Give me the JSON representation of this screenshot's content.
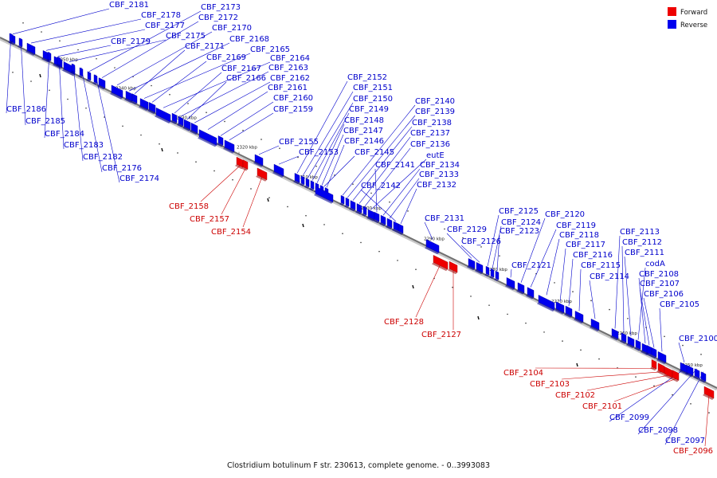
{
  "caption": "Clostridium botulinum F str. 230613, complete genome. - 0..3993083",
  "legend": {
    "forward_label": "Forward",
    "reverse_label": "Reverse",
    "forward_color": "#ee0000",
    "reverse_color": "#0000ee"
  },
  "label_colors": {
    "forward": "#cc0000",
    "reverse": "#0000cc"
  },
  "ticks": [
    "2350 kbp",
    "2340 kbp",
    "2330 kbp",
    "2320 kbp",
    "2310 kbp",
    "2300 kbp",
    "2290 kbp",
    "2280 kbp",
    "2270 kbp",
    "2260 kbp",
    "2250 kbp"
  ],
  "genes": [
    {
      "name": "CBF_2181",
      "strand": "reverse"
    },
    {
      "name": "CBF_2178",
      "strand": "reverse"
    },
    {
      "name": "CBF_2177",
      "strand": "reverse"
    },
    {
      "name": "CBF_2179",
      "strand": "reverse"
    },
    {
      "name": "CBF_2175",
      "strand": "reverse"
    },
    {
      "name": "CBF_2173",
      "strand": "reverse"
    },
    {
      "name": "CBF_2172",
      "strand": "reverse"
    },
    {
      "name": "CBF_2170",
      "strand": "reverse"
    },
    {
      "name": "CBF_2168",
      "strand": "reverse"
    },
    {
      "name": "CBF_2171",
      "strand": "reverse"
    },
    {
      "name": "CBF_2165",
      "strand": "reverse"
    },
    {
      "name": "CBF_2169",
      "strand": "reverse"
    },
    {
      "name": "CBF_2164",
      "strand": "reverse"
    },
    {
      "name": "CBF_2167",
      "strand": "reverse"
    },
    {
      "name": "CBF_2163",
      "strand": "reverse"
    },
    {
      "name": "CBF_2166",
      "strand": "reverse"
    },
    {
      "name": "CBF_2162",
      "strand": "reverse"
    },
    {
      "name": "CBF_2161",
      "strand": "reverse"
    },
    {
      "name": "CBF_2160",
      "strand": "reverse"
    },
    {
      "name": "CBF_2159",
      "strand": "reverse"
    },
    {
      "name": "CBF_2186",
      "strand": "reverse"
    },
    {
      "name": "CBF_2185",
      "strand": "reverse"
    },
    {
      "name": "CBF_2184",
      "strand": "reverse"
    },
    {
      "name": "CBF_2183",
      "strand": "reverse"
    },
    {
      "name": "CBF_2182",
      "strand": "reverse"
    },
    {
      "name": "CBF_2176",
      "strand": "reverse"
    },
    {
      "name": "CBF_2174",
      "strand": "reverse"
    },
    {
      "name": "CBF_2158",
      "strand": "forward"
    },
    {
      "name": "CBF_2157",
      "strand": "forward"
    },
    {
      "name": "CBF_2154",
      "strand": "forward"
    },
    {
      "name": "CBF_2152",
      "strand": "reverse"
    },
    {
      "name": "CBF_2151",
      "strand": "reverse"
    },
    {
      "name": "CBF_2150",
      "strand": "reverse"
    },
    {
      "name": "CBF_2149",
      "strand": "reverse"
    },
    {
      "name": "CBF_2148",
      "strand": "reverse"
    },
    {
      "name": "CBF_2147",
      "strand": "reverse"
    },
    {
      "name": "CBF_2146",
      "strand": "reverse"
    },
    {
      "name": "CBF_2145",
      "strand": "reverse"
    },
    {
      "name": "CBF_2155",
      "strand": "reverse"
    },
    {
      "name": "CBF_2153",
      "strand": "reverse"
    },
    {
      "name": "CBF_2140",
      "strand": "reverse"
    },
    {
      "name": "CBF_2139",
      "strand": "reverse"
    },
    {
      "name": "CBF_2138",
      "strand": "reverse"
    },
    {
      "name": "CBF_2137",
      "strand": "reverse"
    },
    {
      "name": "CBF_2136",
      "strand": "reverse"
    },
    {
      "name": "eutE",
      "strand": "reverse"
    },
    {
      "name": "CBF_2141",
      "strand": "reverse"
    },
    {
      "name": "CBF_2134",
      "strand": "reverse"
    },
    {
      "name": "CBF_2133",
      "strand": "reverse"
    },
    {
      "name": "CBF_2142",
      "strand": "reverse"
    },
    {
      "name": "CBF_2132",
      "strand": "reverse"
    },
    {
      "name": "CBF_2131",
      "strand": "reverse"
    },
    {
      "name": "CBF_2129",
      "strand": "reverse"
    },
    {
      "name": "CBF_2126",
      "strand": "reverse"
    },
    {
      "name": "CBF_2125",
      "strand": "reverse"
    },
    {
      "name": "CBF_2124",
      "strand": "reverse"
    },
    {
      "name": "CBF_2123",
      "strand": "reverse"
    },
    {
      "name": "CBF_2121",
      "strand": "reverse"
    },
    {
      "name": "CBF_2120",
      "strand": "reverse"
    },
    {
      "name": "CBF_2119",
      "strand": "reverse"
    },
    {
      "name": "CBF_2118",
      "strand": "reverse"
    },
    {
      "name": "CBF_2117",
      "strand": "reverse"
    },
    {
      "name": "CBF_2116",
      "strand": "reverse"
    },
    {
      "name": "CBF_2115",
      "strand": "reverse"
    },
    {
      "name": "CBF_2114",
      "strand": "reverse"
    },
    {
      "name": "CBF_2113",
      "strand": "reverse"
    },
    {
      "name": "CBF_2112",
      "strand": "reverse"
    },
    {
      "name": "CBF_2111",
      "strand": "reverse"
    },
    {
      "name": "codA",
      "strand": "reverse"
    },
    {
      "name": "CBF_2108",
      "strand": "reverse"
    },
    {
      "name": "CBF_2107",
      "strand": "reverse"
    },
    {
      "name": "CBF_2106",
      "strand": "reverse"
    },
    {
      "name": "CBF_2105",
      "strand": "reverse"
    },
    {
      "name": "CBF_2100",
      "strand": "reverse"
    },
    {
      "name": "CBF_2128",
      "strand": "forward"
    },
    {
      "name": "CBF_2127",
      "strand": "forward"
    },
    {
      "name": "CBF_2104",
      "strand": "forward"
    },
    {
      "name": "CBF_2103",
      "strand": "forward"
    },
    {
      "name": "CBF_2102",
      "strand": "forward"
    },
    {
      "name": "CBF_2101",
      "strand": "forward"
    },
    {
      "name": "CBF_2099",
      "strand": "reverse"
    },
    {
      "name": "CBF_2098",
      "strand": "reverse"
    },
    {
      "name": "CBF_2097",
      "strand": "reverse"
    },
    {
      "name": "CBF_2096",
      "strand": "forward"
    }
  ]
}
